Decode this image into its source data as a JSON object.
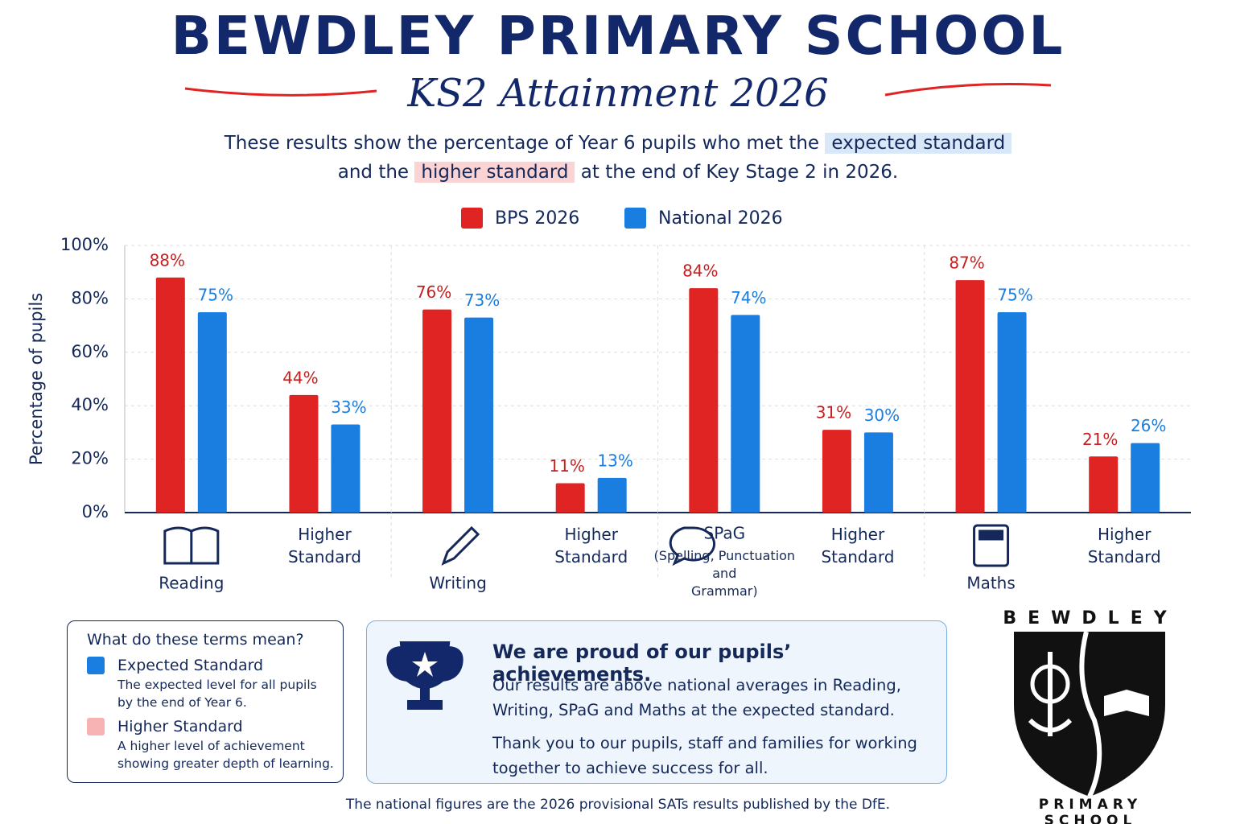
{
  "header": {
    "title": "BEWDLEY PRIMARY SCHOOL",
    "subtitle": "KS2 Attainment 2026",
    "intro": [
      "These results show the percentage of Year 6 pupils who met the",
      "expected standard",
      "and the",
      "higher standard",
      "at the end of Key Stage 2 in 2026."
    ]
  },
  "chart_data": {
    "type": "bar",
    "y_label": "Percentage of pupils",
    "categories": [
      "Reading",
      "Higher Standard",
      "Writing",
      "Higher Standard",
      "SPaG",
      "Higher Standard",
      "Maths",
      "Higher Standard"
    ],
    "category_details": [
      null,
      null,
      null,
      null,
      "(Spelling, Punctuation and Grammar)",
      null,
      null,
      null
    ],
    "series": [
      {
        "name": "BPS 2026",
        "color": "#e02424",
        "values": [
          88,
          44,
          76,
          11,
          84,
          31,
          87,
          21
        ],
        "value_labels": [
          "88%",
          "44%",
          "76%",
          "11%",
          "84%",
          "31%",
          "87%",
          "21%"
        ]
      },
      {
        "name": "National 2026",
        "color": "#1a7ee0",
        "values": [
          75,
          33,
          73,
          13,
          74,
          30,
          75,
          26
        ],
        "value_labels": [
          "75%",
          "33%",
          "73%",
          "13%",
          "74%",
          "30%",
          "75%",
          "26%"
        ]
      }
    ],
    "ylim": [
      0,
      100
    ],
    "yticks": [
      {
        "value": 0,
        "label": "0%"
      },
      {
        "value": 20,
        "label": "20%"
      },
      {
        "value": 40,
        "label": "40%"
      },
      {
        "value": 60,
        "label": "60%"
      },
      {
        "value": 80,
        "label": "80%"
      },
      {
        "value": 100,
        "label": "100%"
      }
    ],
    "grid": true,
    "legend": "top"
  },
  "terms": {
    "title": "What do these terms mean?",
    "items": [
      {
        "name": "Expected Standard",
        "color": "#1a7ee0",
        "text": "The expected level for all pupils by the end of Year 6."
      },
      {
        "name": "Higher Standard",
        "color": "#f7b3b3",
        "text": "A higher level of achievement showing greater depth of learning."
      }
    ]
  },
  "proud": {
    "heading": "We are proud of our pupils’ achievements.",
    "paragraphs": [
      "Our results are above national averages in Reading, Writing, SPaG and Maths at the expected standard.",
      "Thank you to our pupils, staff and families for working together to achieve success for all."
    ]
  },
  "logo": {
    "top": "BEWDLEY",
    "bottom": "PRIMARY SCHOOL"
  },
  "footer": "The national figures are the 2026 provisional SATs results published by the DfE."
}
